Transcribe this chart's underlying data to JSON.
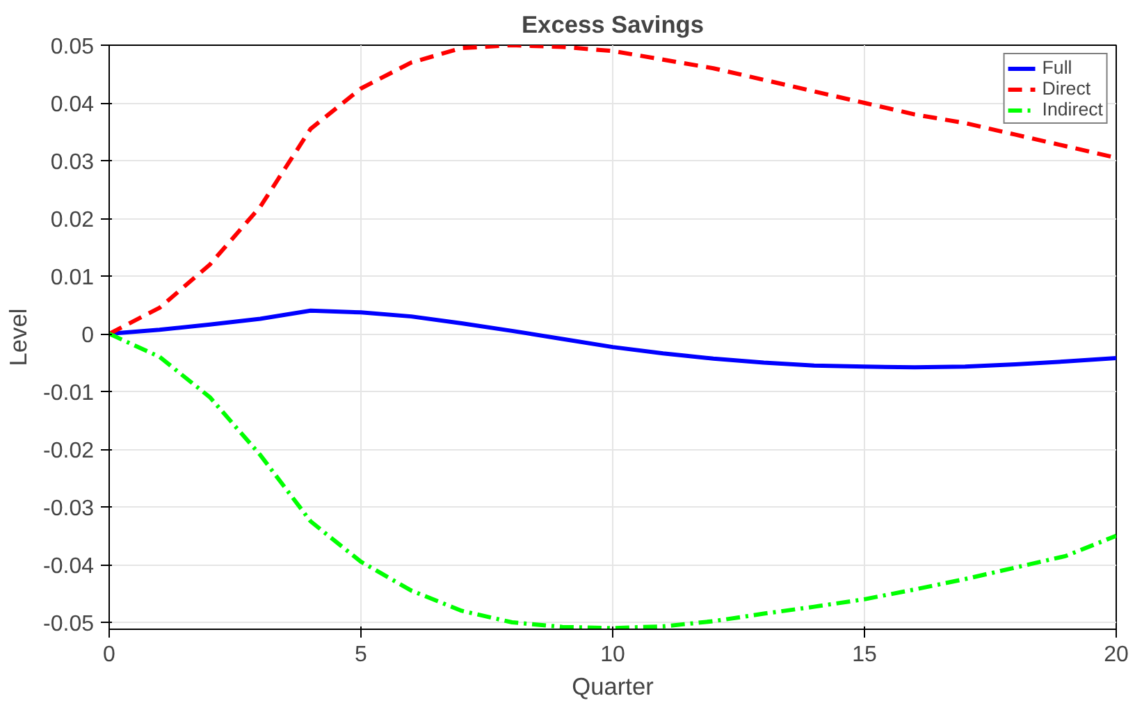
{
  "chart_data": {
    "type": "line",
    "title": "Excess Savings",
    "xlabel": "Quarter",
    "ylabel": "Level",
    "x": [
      0,
      1,
      2,
      3,
      4,
      5,
      6,
      7,
      8,
      9,
      10,
      11,
      12,
      13,
      14,
      15,
      16,
      17,
      18,
      19,
      20
    ],
    "series": [
      {
        "name": "Full",
        "color": "#0000ff",
        "line_style": "solid",
        "values": [
          0,
          0.0007,
          0.0016,
          0.0026,
          0.004,
          0.0037,
          0.003,
          0.0018,
          0.0005,
          -0.0009,
          -0.0023,
          -0.0034,
          -0.0043,
          -0.005,
          -0.0055,
          -0.0057,
          -0.0058,
          -0.0057,
          -0.0053,
          -0.0048,
          -0.0042
        ]
      },
      {
        "name": "Direct",
        "color": "#ff0000",
        "line_style": "dashed",
        "values": [
          0,
          0.0045,
          0.012,
          0.022,
          0.0355,
          0.0425,
          0.047,
          0.0495,
          0.05,
          0.0497,
          0.049,
          0.0475,
          0.046,
          0.044,
          0.042,
          0.04,
          0.038,
          0.0365,
          0.0345,
          0.0325,
          0.0305
        ]
      },
      {
        "name": "Indirect",
        "color": "#00ff00",
        "line_style": "dashdot",
        "values": [
          0,
          -0.004,
          -0.011,
          -0.021,
          -0.0325,
          -0.0395,
          -0.0445,
          -0.048,
          -0.05,
          -0.0508,
          -0.051,
          -0.0507,
          -0.0498,
          -0.0485,
          -0.0473,
          -0.046,
          -0.0443,
          -0.0425,
          -0.0405,
          -0.0385,
          -0.035
        ]
      }
    ],
    "xlim": [
      0,
      20
    ],
    "xticks": [
      0,
      5,
      10,
      15,
      20
    ],
    "ylim": [
      -0.0512,
      0.05
    ],
    "yticks": [
      -0.05,
      -0.04,
      -0.03,
      -0.02,
      -0.01,
      0,
      0.01,
      0.02,
      0.03,
      0.04,
      0.05
    ],
    "grid": true,
    "legend": "top right",
    "marker": "none"
  }
}
